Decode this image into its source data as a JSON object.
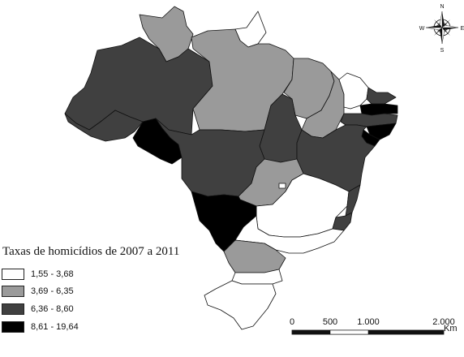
{
  "title": "Taxas de homicídios de 2007 a 2011",
  "legend": [
    {
      "label": "1,55 - 3,68",
      "color": "#ffffff"
    },
    {
      "label": "3,69 - 6,35",
      "color": "#9a9a9a"
    },
    {
      "label": "6,36 - 8,60",
      "color": "#404040"
    },
    {
      "label": "8,61 - 19,64",
      "color": "#000000"
    }
  ],
  "scale_bar": {
    "ticks": [
      "0",
      "500",
      "1.000",
      "2.000"
    ],
    "unit": "Km"
  },
  "compass": {
    "n": "N",
    "s": "S",
    "e": "E",
    "w": "W"
  }
}
